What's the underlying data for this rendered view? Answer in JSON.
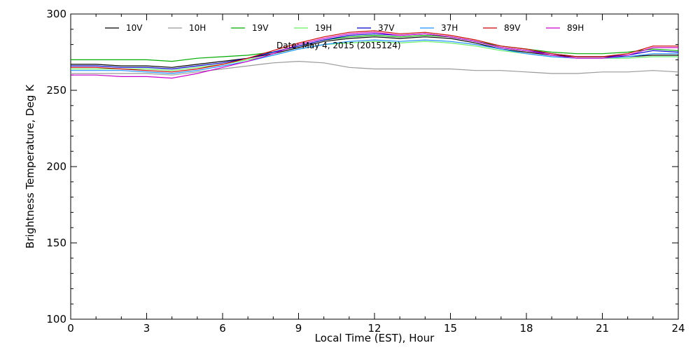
{
  "chart_data": {
    "type": "line",
    "xlabel": "Local Time (EST), Hour",
    "ylabel": "Brightness Temperature, Deg K",
    "annotation": "Date: May  4, 2015 (2015124)",
    "xlim": [
      0,
      24
    ],
    "ylim": [
      100,
      300
    ],
    "x_ticks": [
      0,
      3,
      6,
      9,
      12,
      15,
      18,
      21,
      24
    ],
    "y_ticks": [
      100,
      150,
      200,
      250,
      300
    ],
    "x": [
      0,
      1,
      2,
      3,
      4,
      5,
      6,
      7,
      8,
      9,
      10,
      11,
      12,
      13,
      14,
      15,
      16,
      17,
      18,
      19,
      20,
      21,
      22,
      23,
      24
    ],
    "legend_position": "top",
    "series": [
      {
        "name": "10V",
        "color": "#000000",
        "values": [
          267,
          267,
          266,
          266,
          265,
          267,
          269,
          271,
          274,
          278,
          282,
          284,
          285,
          284,
          285,
          284,
          281,
          277,
          275,
          273,
          272,
          272,
          272,
          273,
          273
        ]
      },
      {
        "name": "10H",
        "color": "#999999",
        "values": [
          261,
          261,
          261,
          261,
          260,
          262,
          264,
          266,
          268,
          269,
          268,
          265,
          264,
          264,
          264,
          264,
          263,
          263,
          262,
          261,
          261,
          262,
          262,
          263,
          262
        ]
      },
      {
        "name": "19V",
        "color": "#00aa00",
        "values": [
          270,
          270,
          270,
          270,
          269,
          271,
          272,
          273,
          275,
          279,
          283,
          285,
          286,
          285,
          286,
          285,
          282,
          279,
          277,
          275,
          274,
          274,
          275,
          277,
          276
        ]
      },
      {
        "name": "19H",
        "color": "#66ee66",
        "values": [
          264,
          264,
          264,
          264,
          263,
          265,
          267,
          270,
          273,
          277,
          280,
          281,
          282,
          281,
          282,
          281,
          279,
          276,
          274,
          272,
          271,
          271,
          271,
          272,
          272
        ]
      },
      {
        "name": "37V",
        "color": "#0000cc",
        "values": [
          266,
          266,
          265,
          265,
          264,
          266,
          268,
          271,
          275,
          279,
          283,
          286,
          287,
          286,
          287,
          285,
          282,
          278,
          276,
          274,
          272,
          272,
          273,
          276,
          275
        ]
      },
      {
        "name": "37H",
        "color": "#1e90ff",
        "values": [
          263,
          263,
          263,
          262,
          261,
          263,
          266,
          269,
          273,
          277,
          280,
          282,
          283,
          282,
          283,
          282,
          280,
          277,
          274,
          272,
          271,
          271,
          272,
          274,
          274
        ]
      },
      {
        "name": "89V",
        "color": "#cc0000",
        "values": [
          265,
          265,
          264,
          263,
          262,
          264,
          267,
          271,
          276,
          281,
          285,
          288,
          289,
          287,
          288,
          286,
          283,
          279,
          277,
          274,
          272,
          272,
          274,
          279,
          279
        ]
      },
      {
        "name": "89H",
        "color": "#cc00cc",
        "values": [
          260,
          260,
          259,
          259,
          258,
          261,
          265,
          269,
          274,
          280,
          284,
          287,
          288,
          286,
          287,
          285,
          282,
          278,
          276,
          273,
          271,
          271,
          273,
          278,
          278
        ]
      }
    ]
  }
}
